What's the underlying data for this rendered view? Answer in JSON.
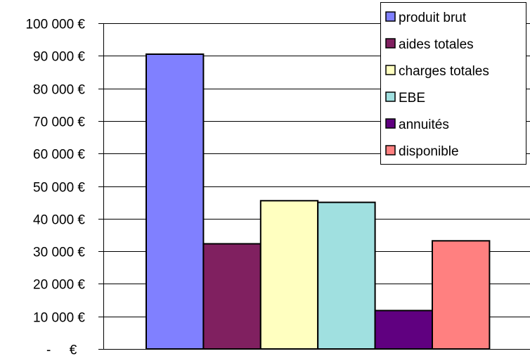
{
  "chart_data": {
    "type": "bar",
    "title": "",
    "xlabel": "",
    "ylabel": "",
    "ylim": [
      0,
      100000
    ],
    "y_ticks": [
      {
        "value": 0,
        "label": "-     €"
      },
      {
        "value": 10000,
        "label": "10 000 €"
      },
      {
        "value": 20000,
        "label": "20 000 €"
      },
      {
        "value": 30000,
        "label": "30 000 €"
      },
      {
        "value": 40000,
        "label": "40 000 €"
      },
      {
        "value": 50000,
        "label": "50 000 €"
      },
      {
        "value": 60000,
        "label": "60 000 €"
      },
      {
        "value": 70000,
        "label": "70 000 €"
      },
      {
        "value": 80000,
        "label": "80 000 €"
      },
      {
        "value": 90000,
        "label": "90 000 €"
      },
      {
        "value": 100000,
        "label": "100 000 €"
      }
    ],
    "grid": true,
    "legend_position": "top-right",
    "series": [
      {
        "name": "produit brut",
        "value": 90500,
        "color": "#8080FF"
      },
      {
        "name": "aides totales",
        "value": 32300,
        "color": "#802060"
      },
      {
        "name": "charges totales",
        "value": 45500,
        "color": "#FFFFC0"
      },
      {
        "name": "EBE",
        "value": 45000,
        "color": "#A0E0E0"
      },
      {
        "name": "annuités",
        "value": 11800,
        "color": "#600080"
      },
      {
        "name": "disponible",
        "value": 33200,
        "color": "#FF8080"
      }
    ]
  }
}
